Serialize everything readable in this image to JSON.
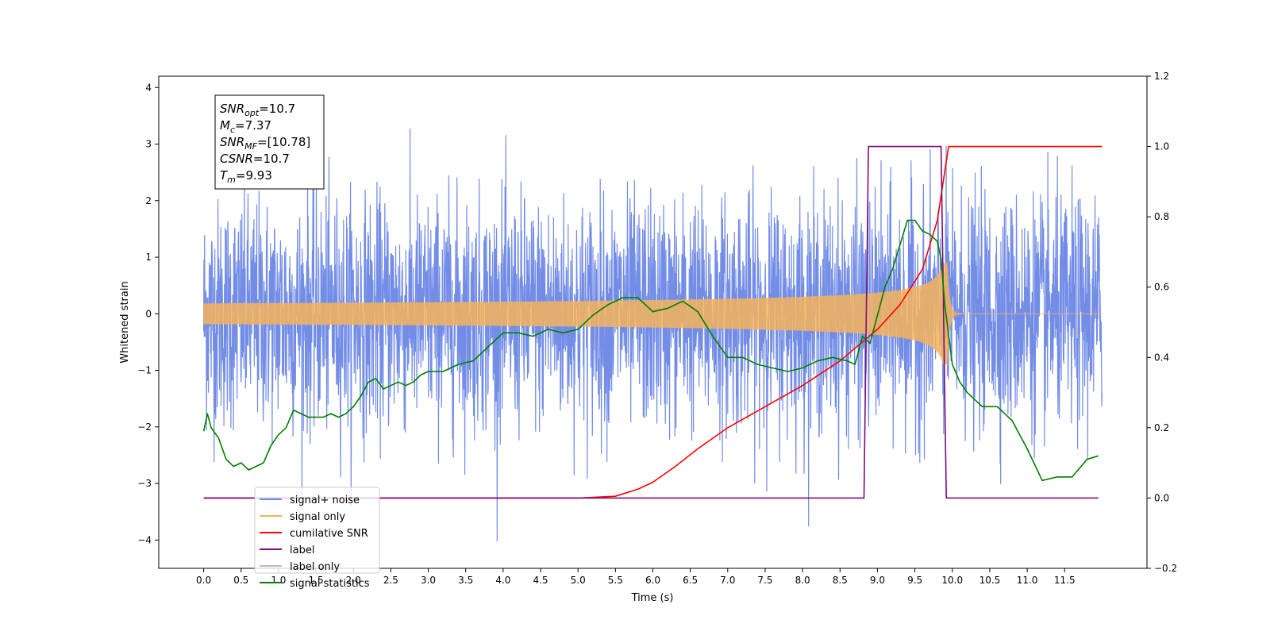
{
  "chart_data": {
    "type": "line",
    "xlabel": "Time (s)",
    "ylabel": "Whitened strain",
    "xlim": [
      -0.6,
      12.6
    ],
    "ylim": [
      -4.5,
      4.2
    ],
    "y2lim": [
      -0.2,
      1.2
    ],
    "x_ticks": [
      0.0,
      0.5,
      1.0,
      1.5,
      2.0,
      2.5,
      3.0,
      3.5,
      4.0,
      4.5,
      5.0,
      5.5,
      6.0,
      6.5,
      7.0,
      7.5,
      8.0,
      8.5,
      9.0,
      9.5,
      10.0,
      10.5,
      11.0,
      11.5
    ],
    "x_tick_labels": [
      "0.0",
      "0.5",
      "1.0",
      "1.5",
      "2.0",
      "2.5",
      "3.0",
      "3.5",
      "4.0",
      "4.5",
      "5.0",
      "5.5",
      "6.0",
      "6.5",
      "7.0",
      "7.5",
      "8.0",
      "8.5",
      "9.0",
      "9.5",
      "10.0",
      "10.5",
      "11.0",
      "11.5"
    ],
    "y_ticks": [
      -4,
      -3,
      -2,
      -1,
      0,
      1,
      2,
      3,
      4
    ],
    "y_tick_labels": [
      "−4",
      "−3",
      "−2",
      "−1",
      "0",
      "1",
      "2",
      "3",
      "4"
    ],
    "y2_ticks": [
      -0.2,
      0.0,
      0.2,
      0.4,
      0.6,
      0.8,
      1.0,
      1.2
    ],
    "y2_tick_labels": [
      "−0.2",
      "0.0",
      "0.2",
      "0.4",
      "0.6",
      "0.8",
      "1.0",
      "1.2"
    ],
    "grid": false,
    "legend_position": "lower-left",
    "annotation": {
      "lines": [
        {
          "sym": "SNR",
          "sub": "opt",
          "value": "=10.7"
        },
        {
          "sym": "M",
          "sub": "c",
          "value": "=7.37"
        },
        {
          "sym": "SNR",
          "sub": "MF",
          "value": "=[10.78]"
        },
        {
          "sym": "CSNR",
          "sub": "",
          "value": "=10.7"
        },
        {
          "sym": "T",
          "sub": "m",
          "value": "=9.93"
        }
      ]
    },
    "series": [
      {
        "name": "signal+ noise",
        "axis": "left",
        "color": "#6b87e6",
        "kind": "noise",
        "x_range": [
          0.0,
          12.0
        ],
        "std": 1.0,
        "range": [
          -4.1,
          3.8
        ]
      },
      {
        "name": "signal only",
        "axis": "left",
        "color": "#f5b35c",
        "kind": "chirp",
        "x_range": [
          0.0,
          12.0
        ],
        "merger_time": 9.93,
        "peak_amplitude": 1.0
      },
      {
        "name": "cumilative SNR",
        "axis": "right",
        "color": "#ff0000",
        "x": [
          0.0,
          5.0,
          5.5,
          5.8,
          6.0,
          6.3,
          6.6,
          7.0,
          7.5,
          8.0,
          8.5,
          9.0,
          9.3,
          9.6,
          9.8,
          9.9,
          9.95,
          12.0
        ],
        "y": [
          0.0,
          0.0,
          0.005,
          0.025,
          0.045,
          0.09,
          0.14,
          0.2,
          0.26,
          0.32,
          0.39,
          0.48,
          0.55,
          0.65,
          0.79,
          0.93,
          1.0,
          1.0
        ]
      },
      {
        "name": "label",
        "axis": "right",
        "color": "#7a0f7a",
        "x": [
          0.0,
          8.82,
          8.88,
          9.85,
          9.92,
          11.95
        ],
        "y": [
          0.0,
          0.0,
          1.0,
          1.0,
          0.0,
          0.0
        ]
      },
      {
        "name": "label only",
        "axis": "right",
        "color": "#bbbbbb",
        "x": [],
        "y": []
      },
      {
        "name": "signal statistics",
        "axis": "right",
        "color": "#007f00",
        "x": [
          0.0,
          0.05,
          0.1,
          0.2,
          0.3,
          0.4,
          0.5,
          0.6,
          0.7,
          0.8,
          0.9,
          1.0,
          1.1,
          1.2,
          1.3,
          1.4,
          1.5,
          1.6,
          1.7,
          1.8,
          1.9,
          2.0,
          2.1,
          2.2,
          2.3,
          2.4,
          2.5,
          2.6,
          2.7,
          2.8,
          2.9,
          3.0,
          3.2,
          3.4,
          3.6,
          3.8,
          4.0,
          4.2,
          4.4,
          4.6,
          4.8,
          5.0,
          5.2,
          5.4,
          5.6,
          5.8,
          6.0,
          6.2,
          6.4,
          6.6,
          6.8,
          7.0,
          7.2,
          7.4,
          7.6,
          7.8,
          8.0,
          8.2,
          8.4,
          8.6,
          8.7,
          8.8,
          8.9,
          9.0,
          9.1,
          9.2,
          9.3,
          9.4,
          9.5,
          9.6,
          9.7,
          9.8,
          9.85,
          9.9,
          10.0,
          10.1,
          10.2,
          10.4,
          10.6,
          10.8,
          11.0,
          11.2,
          11.4,
          11.6,
          11.8,
          11.95
        ],
        "y": [
          0.19,
          0.24,
          0.2,
          0.17,
          0.11,
          0.09,
          0.1,
          0.08,
          0.09,
          0.1,
          0.15,
          0.18,
          0.2,
          0.25,
          0.24,
          0.23,
          0.23,
          0.23,
          0.24,
          0.23,
          0.24,
          0.26,
          0.29,
          0.33,
          0.34,
          0.31,
          0.32,
          0.33,
          0.32,
          0.33,
          0.35,
          0.36,
          0.36,
          0.38,
          0.39,
          0.43,
          0.47,
          0.47,
          0.46,
          0.48,
          0.47,
          0.48,
          0.52,
          0.55,
          0.57,
          0.57,
          0.53,
          0.54,
          0.56,
          0.53,
          0.46,
          0.4,
          0.4,
          0.38,
          0.37,
          0.36,
          0.37,
          0.39,
          0.4,
          0.39,
          0.38,
          0.46,
          0.44,
          0.52,
          0.6,
          0.65,
          0.72,
          0.79,
          0.79,
          0.76,
          0.75,
          0.73,
          0.68,
          0.55,
          0.38,
          0.33,
          0.3,
          0.26,
          0.26,
          0.22,
          0.14,
          0.05,
          0.06,
          0.06,
          0.11,
          0.12
        ]
      }
    ]
  }
}
